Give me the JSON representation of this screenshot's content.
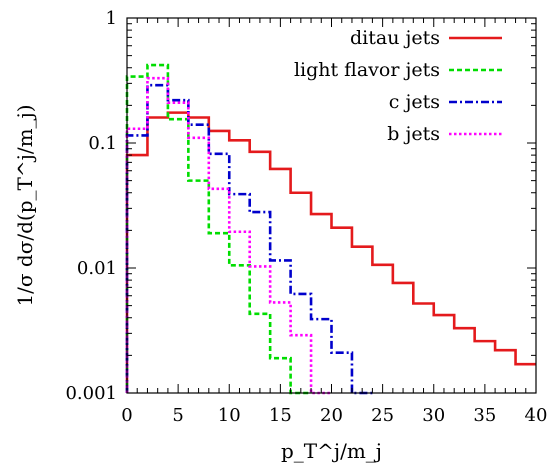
{
  "chart_data": {
    "type": "line",
    "style": "histogram-step",
    "xlabel": "p_T^j/m_j",
    "ylabel": "1/σ dσ/d(p_T^j/m_j)",
    "xlim": [
      0,
      40
    ],
    "ylim": [
      0.001,
      1
    ],
    "yscale": "log",
    "grid": false,
    "legend_position": "top-right",
    "x_ticks": [
      0,
      5,
      10,
      15,
      20,
      25,
      30,
      35,
      40
    ],
    "x_tick_labels": [
      "0",
      "5",
      "10",
      "15",
      "20",
      "25",
      "30",
      "35",
      "40"
    ],
    "y_ticks": [
      0.001,
      0.01,
      0.1,
      1
    ],
    "y_tick_labels": [
      "0.001",
      "0.01",
      "0.1",
      "1"
    ],
    "bin_edges": [
      0,
      2,
      4,
      6,
      8,
      10,
      12,
      14,
      16,
      18,
      20,
      22,
      24,
      26,
      28,
      30,
      32,
      34,
      36,
      38,
      40
    ],
    "series": [
      {
        "name": "ditau jets",
        "color": "#e41a1c",
        "dash": "solid",
        "values": [
          0.08,
          0.16,
          0.175,
          0.16,
          0.125,
          0.105,
          0.085,
          0.062,
          0.04,
          0.027,
          0.021,
          0.0148,
          0.0106,
          0.0076,
          0.0052,
          0.0042,
          0.0033,
          0.0026,
          0.0022,
          0.0017
        ]
      },
      {
        "name": "light flavor jets",
        "color": "#00dd00",
        "dash": "dashed",
        "values": [
          0.34,
          0.42,
          0.155,
          0.05,
          0.019,
          0.0105,
          0.0043,
          0.0019,
          0.001,
          null,
          null,
          null,
          null,
          null,
          null,
          null,
          null,
          null,
          null,
          null
        ]
      },
      {
        "name": "c jets",
        "color": "#0000cc",
        "dash": "dashdot",
        "values": [
          0.115,
          0.29,
          0.22,
          0.14,
          0.082,
          0.039,
          0.028,
          0.0115,
          0.0062,
          0.0039,
          0.0021,
          0.001,
          null,
          null,
          null,
          null,
          null,
          null,
          null,
          null
        ]
      },
      {
        "name": "b jets",
        "color": "#ff00ff",
        "dash": "dotted",
        "values": [
          0.13,
          0.33,
          0.21,
          0.11,
          0.043,
          0.0195,
          0.0103,
          0.0053,
          0.0029,
          0.001,
          null,
          null,
          null,
          null,
          null,
          null,
          null,
          null,
          null,
          null
        ]
      }
    ]
  }
}
